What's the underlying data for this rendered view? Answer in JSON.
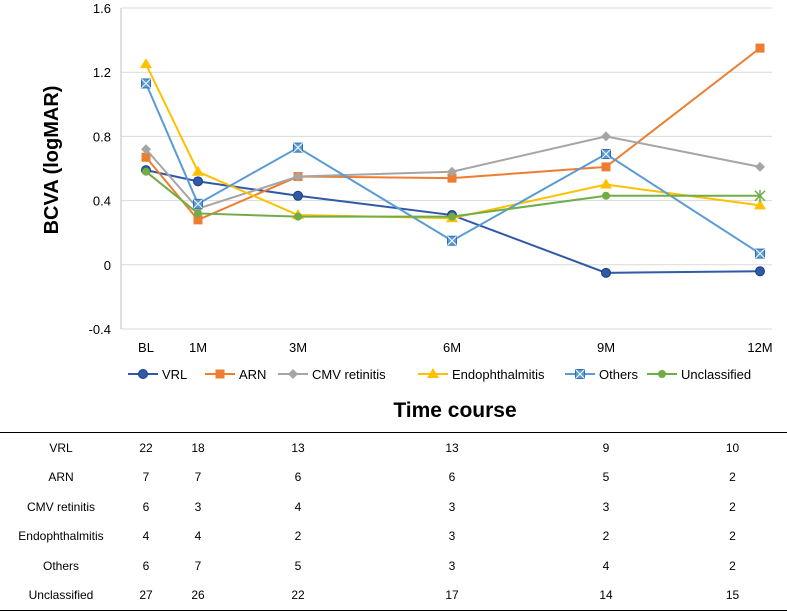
{
  "chart_data": {
    "type": "line",
    "title": "",
    "xlabel": "Time course",
    "ylabel": "BCVA (logMAR)",
    "categories": [
      "BL",
      "1M",
      "3M",
      "6M",
      "9M",
      "12M"
    ],
    "ylim": [
      -0.4,
      1.6
    ],
    "yticks": [
      "-0.4",
      "0",
      "0.4",
      "0.8",
      "1.2",
      "1.6"
    ],
    "ytick_values": [
      -0.4,
      0,
      0.4,
      0.8,
      1.2,
      1.6
    ],
    "grid": true,
    "legend_position": "bottom",
    "series": [
      {
        "name": "VRL",
        "color": "#2e5aa8",
        "marker": "circle",
        "values": [
          0.59,
          0.52,
          0.43,
          0.31,
          -0.05,
          -0.04
        ]
      },
      {
        "name": "ARN",
        "color": "#ed7d31",
        "marker": "square",
        "values": [
          0.67,
          0.28,
          0.55,
          0.54,
          0.61,
          1.35
        ]
      },
      {
        "name": "CMV retinitis",
        "color": "#a5a5a5",
        "marker": "diamond",
        "values": [
          0.72,
          0.35,
          0.55,
          0.58,
          0.8,
          0.61
        ]
      },
      {
        "name": "Endophthalmitis",
        "color": "#ffc000",
        "marker": "triangle",
        "values": [
          1.25,
          0.58,
          0.31,
          0.29,
          0.5,
          0.37
        ]
      },
      {
        "name": "Others",
        "color": "#5b9bd5",
        "marker": "xsquare",
        "values": [
          1.13,
          0.38,
          0.73,
          0.15,
          0.69,
          0.07
        ]
      },
      {
        "name": "Unclassified",
        "color": "#70ad47",
        "marker": "smallcircle",
        "values": [
          0.58,
          0.32,
          0.3,
          0.3,
          0.43,
          0.43
        ]
      }
    ]
  },
  "table": {
    "rows": [
      {
        "label": "VRL",
        "values": [
          "22",
          "18",
          "13",
          "13",
          "9",
          "10"
        ]
      },
      {
        "label": "ARN",
        "values": [
          "7",
          "7",
          "6",
          "6",
          "5",
          "2"
        ]
      },
      {
        "label": "CMV retinitis",
        "values": [
          "6",
          "3",
          "4",
          "3",
          "3",
          "2"
        ]
      },
      {
        "label": "Endophthalmitis",
        "values": [
          "4",
          "4",
          "2",
          "3",
          "2",
          "2"
        ]
      },
      {
        "label": "Others",
        "values": [
          "6",
          "7",
          "5",
          "3",
          "4",
          "2"
        ]
      },
      {
        "label": "Unclassified",
        "values": [
          "27",
          "26",
          "22",
          "17",
          "14",
          "15"
        ]
      }
    ]
  }
}
